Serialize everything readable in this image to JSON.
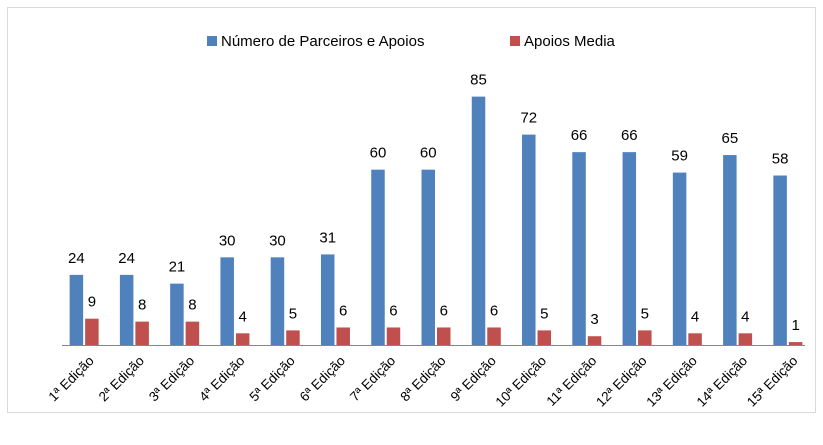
{
  "chart_data": {
    "type": "bar",
    "categories": [
      "1ª Edição",
      "2ª Edição",
      "3ª Edição",
      "4ª Edição",
      "5ª Edição",
      "6ª Edição",
      "7ª Edição",
      "8ª Edição",
      "9ª Edição",
      "10ª Edição",
      "11ª Edição",
      "12ª Edição",
      "13ª Edição",
      "14ª Edição",
      "15ª Edição"
    ],
    "series": [
      {
        "name": "Número de Parceiros e Apoios",
        "color": "#4f81bd",
        "values": [
          24,
          24,
          21,
          30,
          30,
          31,
          60,
          60,
          85,
          72,
          66,
          66,
          59,
          65,
          58
        ]
      },
      {
        "name": "Apoios Media",
        "color": "#c0504d",
        "values": [
          9,
          8,
          8,
          4,
          5,
          6,
          6,
          6,
          6,
          5,
          3,
          5,
          4,
          4,
          1
        ]
      }
    ],
    "ylim": [
      0,
      90
    ],
    "legend": "top"
  }
}
